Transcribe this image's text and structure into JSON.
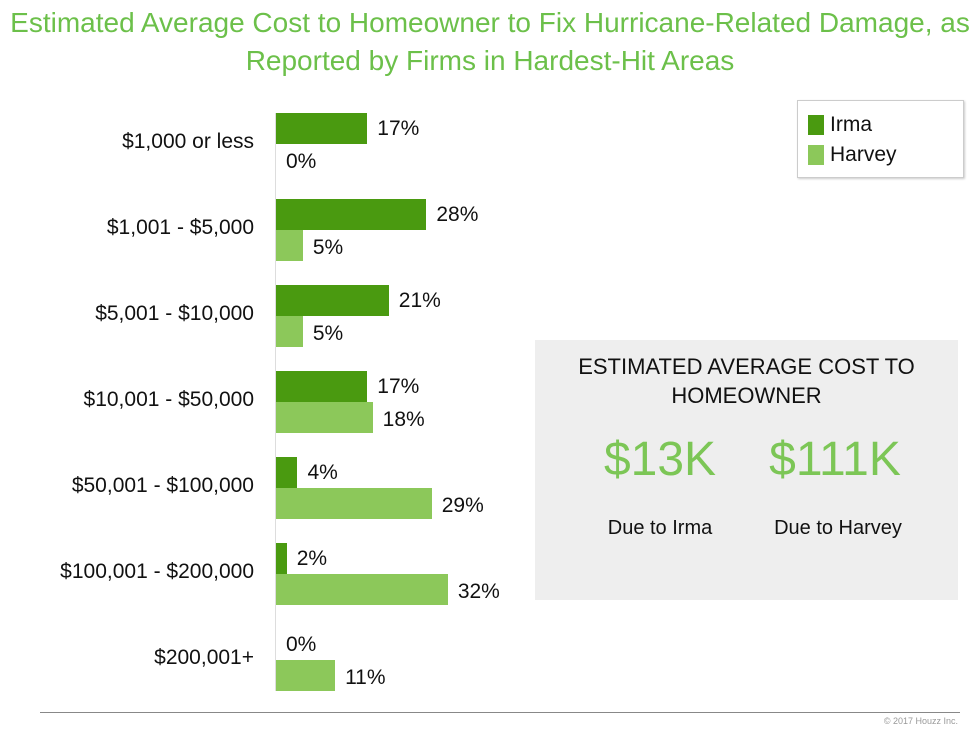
{
  "chart_data": {
    "type": "bar",
    "orientation": "horizontal",
    "title": "Estimated Average Cost to Homeowner to Fix Hurricane-Related Damage, as Reported by Firms in Hardest-Hit Areas",
    "categories": [
      "$1,000 or less",
      "$1,001 - $5,000",
      "$5,001 - $10,000",
      "$10,001 - $50,000",
      "$50,001 - $100,000",
      "$100,001 - $200,000",
      "$200,001+"
    ],
    "series": [
      {
        "name": "Irma",
        "color": "#4a9a10",
        "values": [
          17,
          28,
          21,
          17,
          4,
          2,
          0
        ],
        "labels": [
          "17%",
          "28%",
          "21%",
          "17%",
          "4%",
          "2%",
          "0%"
        ]
      },
      {
        "name": "Harvey",
        "color": "#8cc85a",
        "values": [
          0,
          5,
          5,
          18,
          29,
          32,
          11
        ],
        "labels": [
          "0%",
          "5%",
          "5%",
          "18%",
          "29%",
          "32%",
          "11%"
        ]
      }
    ],
    "legend": "top-right",
    "grid": false
  },
  "callout": {
    "heading": "ESTIMATED AVERAGE COST TO HOMEOWNER",
    "items": [
      {
        "value": "$13K",
        "label": "Due to Irma"
      },
      {
        "value": "$111K",
        "label": "Due to Harvey"
      }
    ]
  },
  "footer": {
    "copyright": "© 2017 Houzz Inc."
  }
}
